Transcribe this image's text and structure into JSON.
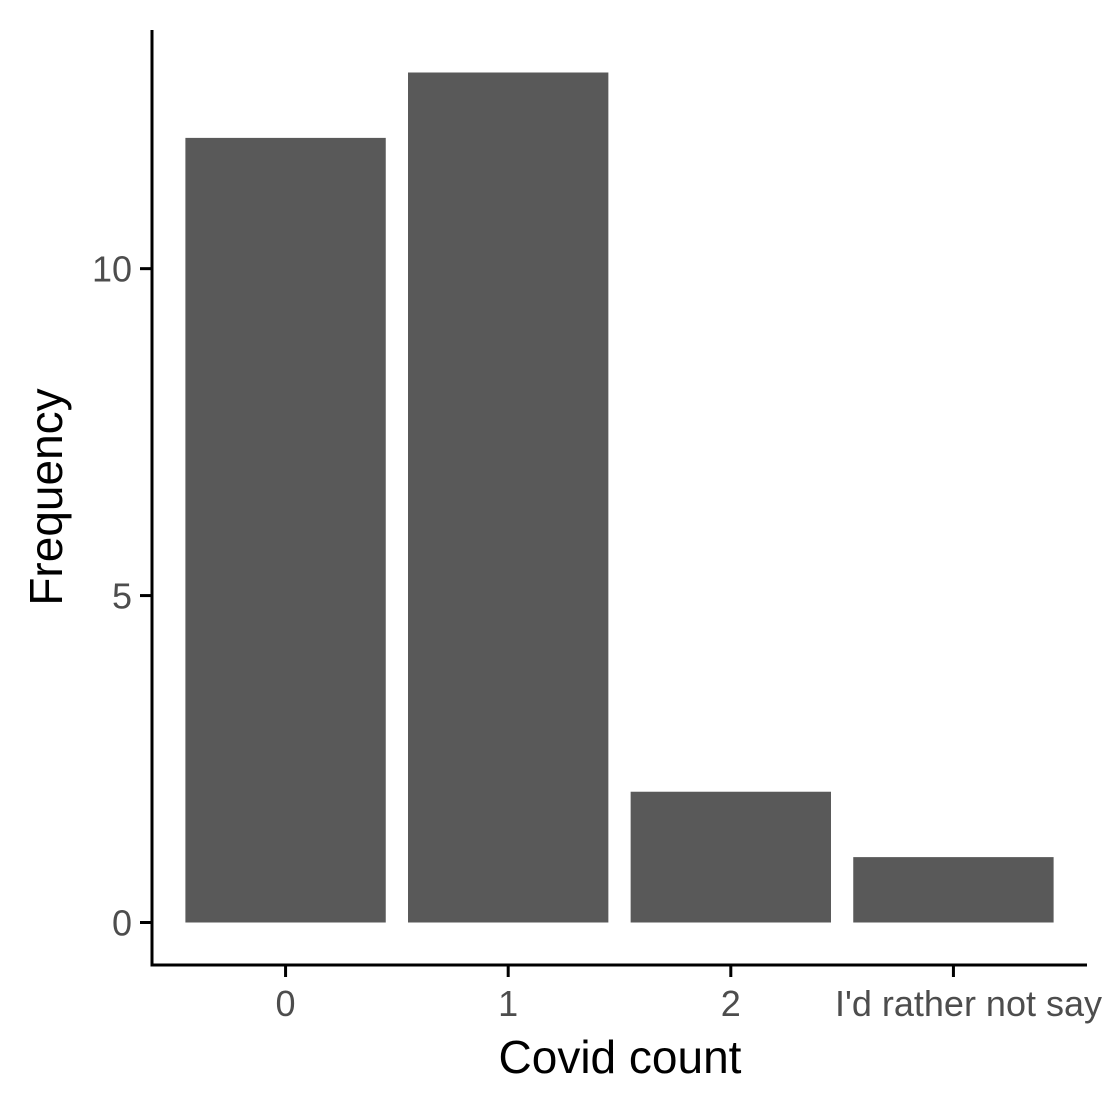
{
  "chart_data": {
    "type": "bar",
    "categories": [
      "0",
      "1",
      "2",
      "I'd rather not say"
    ],
    "values": [
      12,
      13,
      2,
      1
    ],
    "xlabel": "Covid count",
    "ylabel": "Frequency",
    "yticks": [
      0,
      5,
      10
    ],
    "ylim": [
      -0.65,
      13.65
    ],
    "grid": false,
    "bar_color": "#595959",
    "axis_color": "#000000",
    "tick_label_color": "#4d4d4d"
  }
}
